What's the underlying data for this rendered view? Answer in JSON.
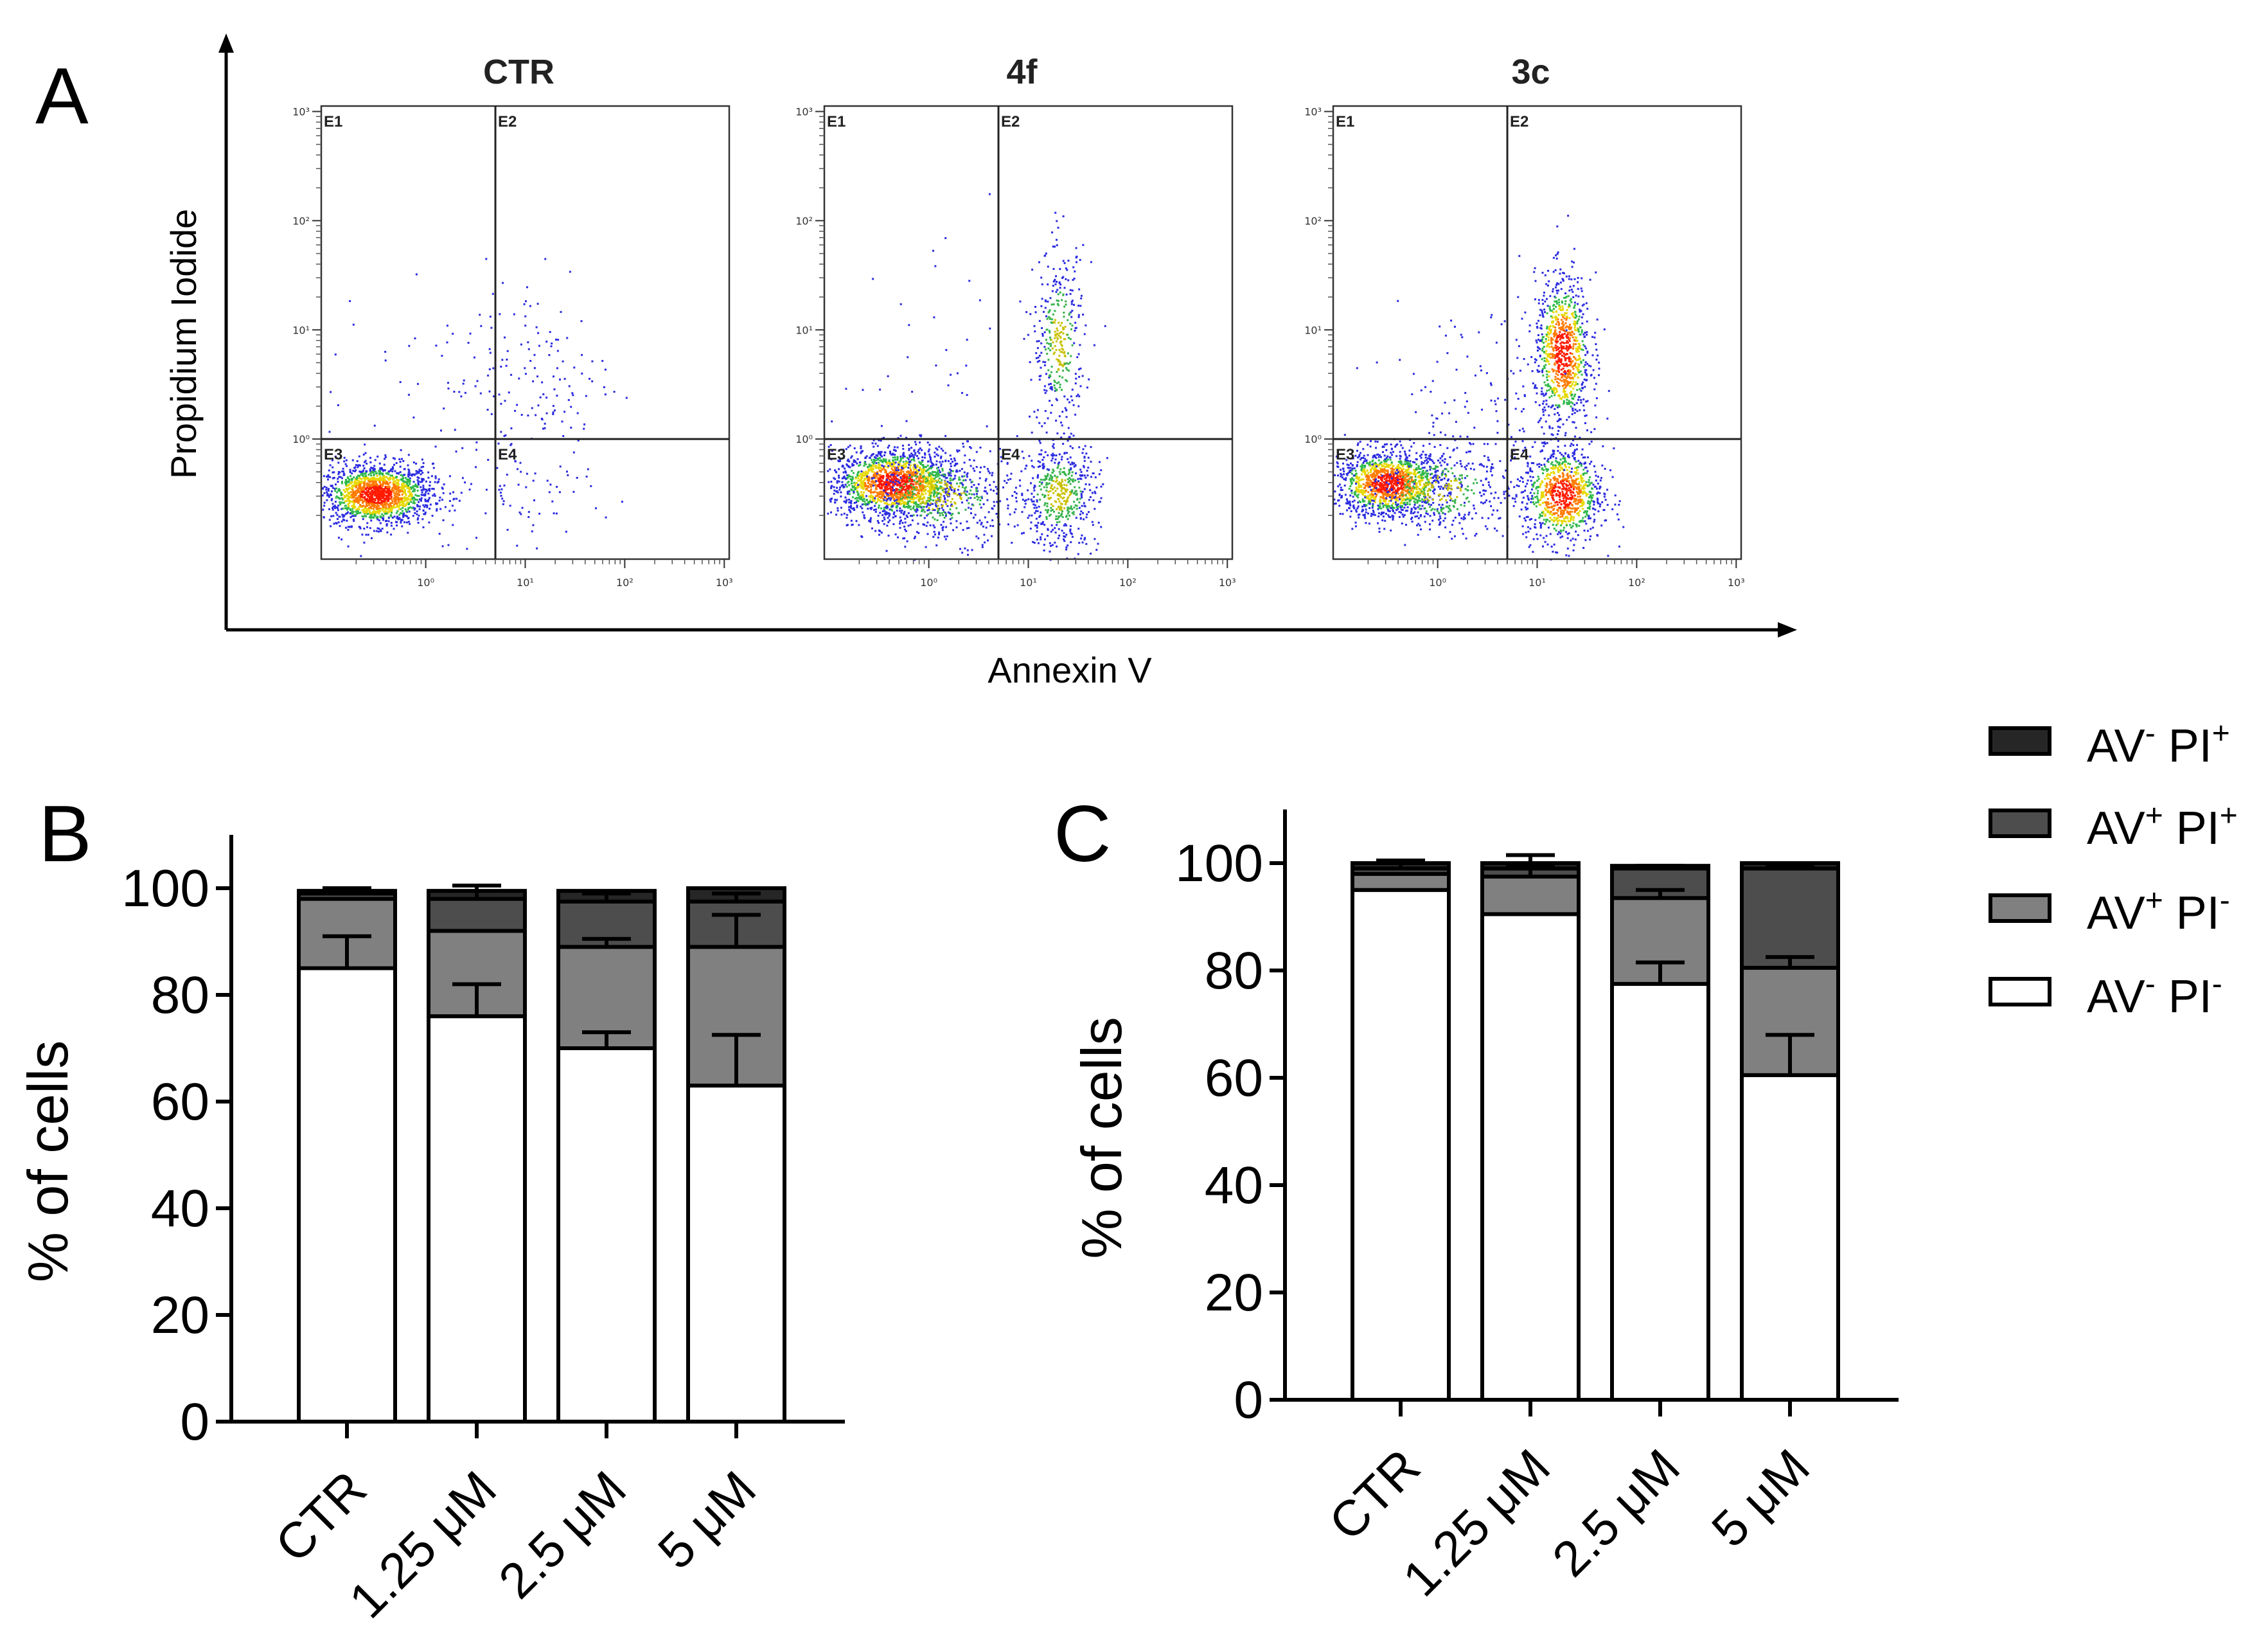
{
  "panel_letters": [
    "A",
    "B",
    "C"
  ],
  "flow": {
    "y_axis_label": "Propidium Iodide",
    "x_axis_label": "Annexin V",
    "tick_labels": [
      "10⁰",
      "10¹",
      "10²",
      "10³"
    ],
    "plots": [
      {
        "title": "CTR",
        "quadrants": [
          "E1",
          "E2",
          "E3",
          "E4"
        ],
        "populations": [
          {
            "x_log": -0.5,
            "y_log": -0.5,
            "sx": 0.28,
            "sy": 0.14,
            "n": 1600
          },
          {
            "x_log": 1.0,
            "y_log": 0.6,
            "sx": 0.45,
            "sy": 0.5,
            "n": 160
          },
          {
            "x_log": 1.0,
            "y_log": -0.5,
            "sx": 0.45,
            "sy": 0.3,
            "n": 70
          },
          {
            "x_log": -0.5,
            "y_log": 0.6,
            "sx": 0.5,
            "sy": 0.5,
            "n": 18
          }
        ]
      },
      {
        "title": "4f",
        "quadrants": [
          "E1",
          "E2",
          "E3",
          "E4"
        ],
        "populations": [
          {
            "x_log": -0.35,
            "y_log": -0.4,
            "sx": 0.32,
            "sy": 0.16,
            "n": 1600
          },
          {
            "x_log": 0.1,
            "y_log": -0.5,
            "sx": 0.4,
            "sy": 0.22,
            "n": 500
          },
          {
            "x_log": 1.3,
            "y_log": -0.5,
            "sx": 0.2,
            "sy": 0.25,
            "n": 500
          },
          {
            "x_log": 1.3,
            "y_log": 0.9,
            "sx": 0.13,
            "sy": 0.42,
            "n": 350
          },
          {
            "x_log": 0.0,
            "y_log": 0.6,
            "sx": 0.5,
            "sy": 0.5,
            "n": 30
          }
        ]
      },
      {
        "title": "3c",
        "quadrants": [
          "E1",
          "E2",
          "E3",
          "E4"
        ],
        "populations": [
          {
            "x_log": -0.5,
            "y_log": -0.4,
            "sx": 0.28,
            "sy": 0.15,
            "n": 1300
          },
          {
            "x_log": 0.0,
            "y_log": -0.45,
            "sx": 0.38,
            "sy": 0.2,
            "n": 400
          },
          {
            "x_log": 1.25,
            "y_log": -0.5,
            "sx": 0.2,
            "sy": 0.22,
            "n": 900
          },
          {
            "x_log": 1.25,
            "y_log": 0.8,
            "sx": 0.14,
            "sy": 0.35,
            "n": 900
          },
          {
            "x_log": 0.4,
            "y_log": 0.3,
            "sx": 0.5,
            "sy": 0.5,
            "n": 120
          }
        ]
      }
    ]
  },
  "legend": {
    "items": [
      {
        "main": "AV",
        "sup": "-",
        "main2": " PI",
        "sup2": "+",
        "color": "#262626"
      },
      {
        "main": "AV",
        "sup": "+",
        "main2": " PI",
        "sup2": "+",
        "color": "#4d4d4d"
      },
      {
        "main": "AV",
        "sup": "+",
        "main2": " PI",
        "sup2": "-",
        "color": "#808080"
      },
      {
        "main": "AV",
        "sup": "-",
        "main2": " PI",
        "sup2": "-",
        "color": "#ffffff"
      }
    ]
  },
  "chart_data": [
    {
      "type": "bar",
      "stacked": true,
      "panel": "B",
      "ylabel": "% of cells",
      "ylim": [
        0,
        110
      ],
      "yticks": [
        0,
        20,
        40,
        60,
        80,
        100
      ],
      "categories": [
        "CTR",
        "1.25 μM",
        "2.5 μM",
        "5 μM"
      ],
      "series": [
        {
          "name": "AV- PI-",
          "values": [
            85,
            76,
            70,
            63
          ],
          "errors": [
            6,
            6,
            3,
            9.5
          ],
          "color": "#ffffff"
        },
        {
          "name": "AV+ PI-",
          "values": [
            13,
            16,
            19,
            26
          ],
          "errors": [
            0,
            0,
            1.5,
            6
          ],
          "color": "#808080"
        },
        {
          "name": "AV+ PI+",
          "values": [
            1,
            6,
            8.5,
            8.5
          ],
          "errors": [
            1,
            2.5,
            1.5,
            1.5
          ],
          "color": "#4d4d4d"
        },
        {
          "name": "AV- PI+",
          "values": [
            0.5,
            1.5,
            2,
            2.5
          ],
          "errors": [
            0,
            0,
            0,
            0
          ],
          "color": "#262626"
        }
      ]
    },
    {
      "type": "bar",
      "stacked": true,
      "panel": "C",
      "ylabel": "% of cells",
      "ylim": [
        0,
        110
      ],
      "yticks": [
        0,
        20,
        40,
        60,
        80,
        100
      ],
      "categories": [
        "CTR",
        "1.25 μM",
        "2.5 μM",
        "5 μM"
      ],
      "series": [
        {
          "name": "AV- PI-",
          "values": [
            95,
            90.5,
            77.5,
            60.5
          ],
          "errors": [
            0,
            0,
            4,
            7.5
          ],
          "color": "#ffffff"
        },
        {
          "name": "AV+ PI-",
          "values": [
            3,
            7,
            16,
            20
          ],
          "errors": [
            0,
            2,
            1.5,
            2
          ],
          "color": "#808080"
        },
        {
          "name": "AV+ PI+",
          "values": [
            1,
            1.5,
            5.5,
            18.5
          ],
          "errors": [
            1.5,
            2.5,
            0.5,
            0.5
          ],
          "color": "#4d4d4d"
        },
        {
          "name": "AV- PI+",
          "values": [
            1,
            1,
            0.5,
            1
          ],
          "errors": [
            0,
            0,
            0,
            0
          ],
          "color": "#262626"
        }
      ]
    }
  ]
}
